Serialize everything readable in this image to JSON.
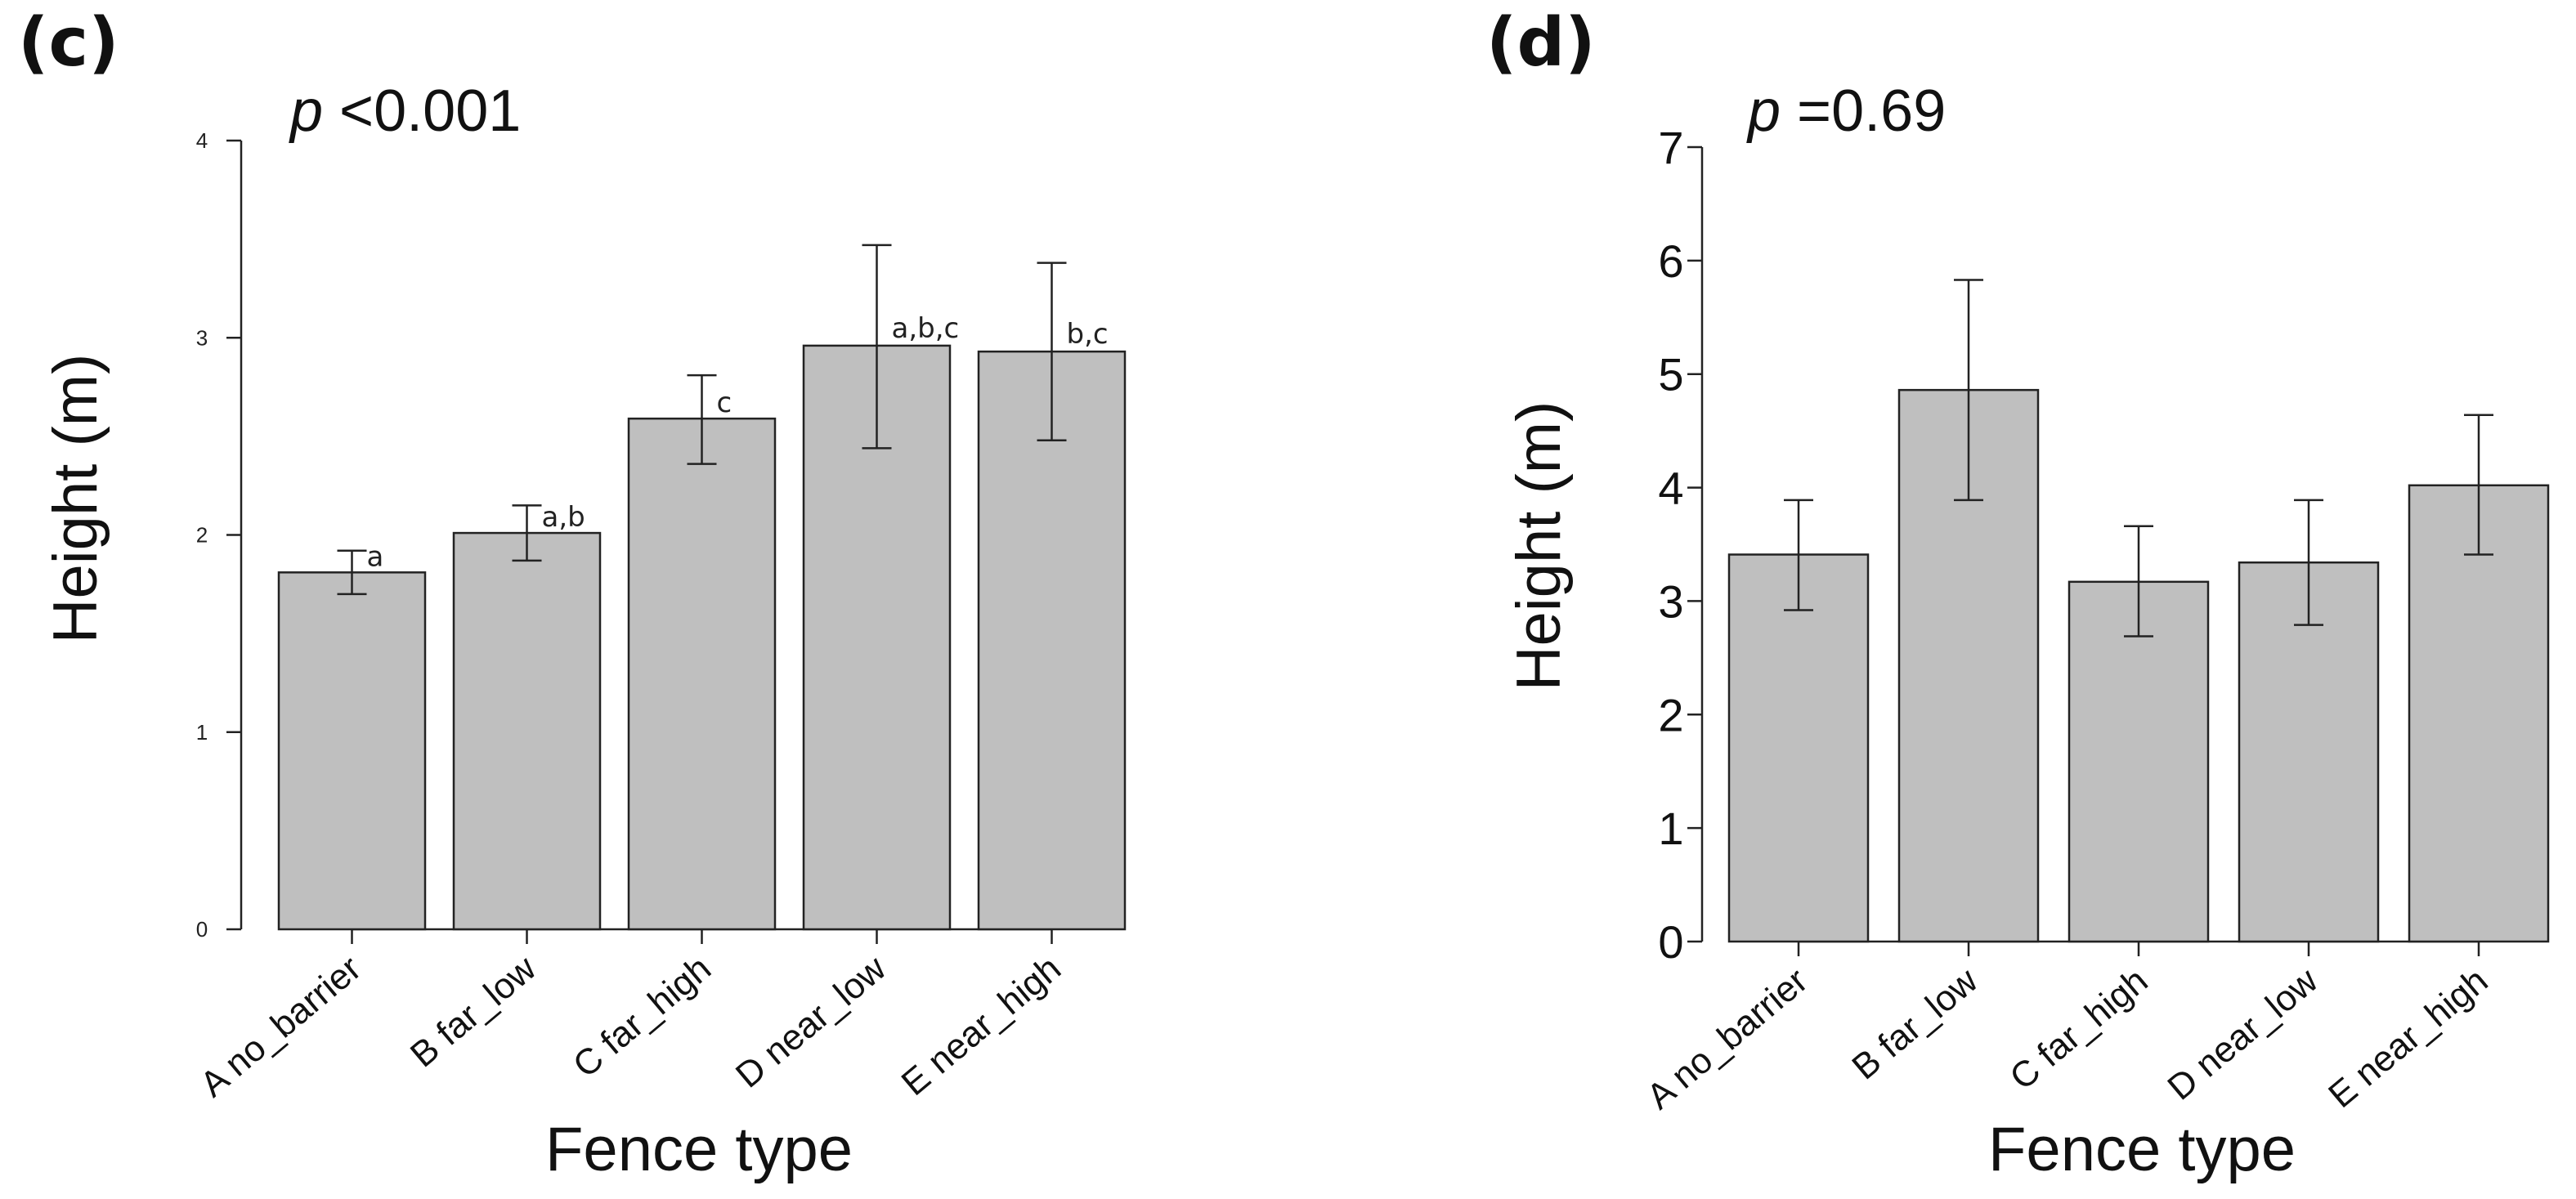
{
  "chart_data": [
    {
      "type": "bar",
      "panel": "(c)",
      "annotation_prefix": "p",
      "annotation_value": " <0.001",
      "categories": [
        "A no_barrier",
        "B far_low",
        "C far_high",
        "D near_low",
        "E near_high"
      ],
      "values": [
        1.81,
        2.01,
        2.59,
        2.96,
        2.93
      ],
      "err_low": [
        1.7,
        1.87,
        2.36,
        2.44,
        2.48
      ],
      "err_high": [
        1.92,
        2.15,
        2.81,
        3.47,
        3.38
      ],
      "sig_letters": [
        "a",
        "a,b",
        "c",
        "a,b,c",
        "b,c"
      ],
      "xlabel": "Fence type",
      "ylabel": "Height (m)",
      "ylim": [
        0,
        4
      ],
      "yticks": [
        "0",
        "1",
        "2",
        "3",
        "4"
      ]
    },
    {
      "type": "bar",
      "panel": "(d)",
      "annotation_prefix": "p",
      "annotation_value": " =0.69",
      "categories": [
        "A no_barrier",
        "B far_low",
        "C far_high",
        "D near_low",
        "E near_high"
      ],
      "values": [
        3.41,
        4.86,
        3.17,
        3.34,
        4.02
      ],
      "err_low": [
        2.92,
        3.89,
        2.69,
        2.79,
        3.41
      ],
      "err_high": [
        3.89,
        5.83,
        3.66,
        3.89,
        4.64
      ],
      "sig_letters": [],
      "xlabel": "Fence type",
      "ylabel": "Height (m)",
      "ylim": [
        0,
        7
      ],
      "yticks": [
        "0",
        "1",
        "2",
        "3",
        "4",
        "5",
        "6",
        "7"
      ]
    }
  ]
}
